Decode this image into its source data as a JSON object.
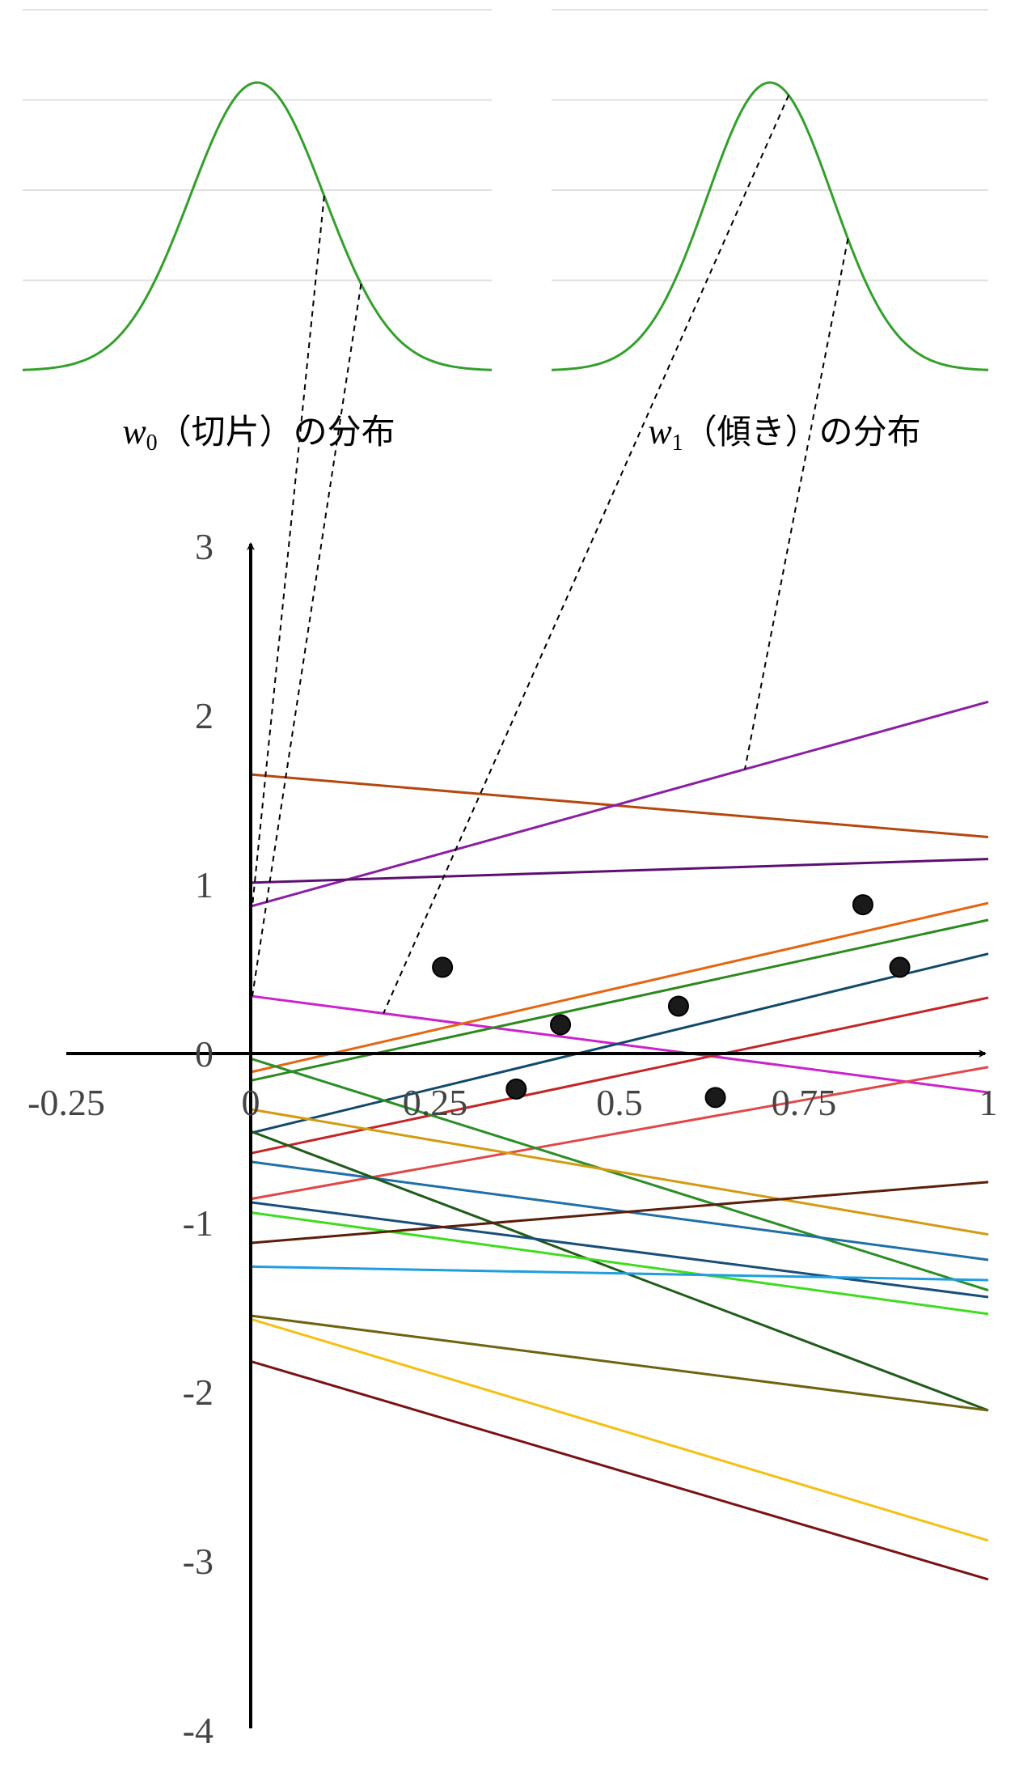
{
  "chart_data": [
    {
      "type": "line",
      "panel": "w0-distribution",
      "title_var": "w",
      "title_sub": "0",
      "title_text": "（切片）の分布",
      "curve": "gaussian",
      "mean": 0,
      "sd": 1,
      "x_range": [
        -3.5,
        3.5
      ],
      "y_range": [
        0,
        1
      ],
      "gridlines": [
        0,
        0.25,
        0.5,
        0.75,
        1.0
      ],
      "grid": true,
      "colors": {
        "curve": "#33a02c",
        "grid": "#e0e0e0"
      }
    },
    {
      "type": "line",
      "panel": "w1-distribution",
      "title_var": "w",
      "title_sub": "1",
      "title_text": "（傾き）の分布",
      "curve": "gaussian",
      "mean": 0,
      "sd": 1,
      "x_range": [
        -3.5,
        3.5
      ],
      "y_range": [
        0,
        1
      ],
      "gridlines": [
        0,
        0.25,
        0.5,
        0.75,
        1.0
      ],
      "grid": true,
      "colors": {
        "curve": "#33a02c",
        "grid": "#e0e0e0"
      }
    },
    {
      "type": "line",
      "panel": "sampled-lines",
      "xlim": [
        -0.25,
        1
      ],
      "ylim": [
        -4,
        3
      ],
      "x_ticks": [
        {
          "value": -0.25,
          "label": "-0.25"
        },
        {
          "value": 0,
          "label": "0"
        },
        {
          "value": 0.25,
          "label": "0.25"
        },
        {
          "value": 0.5,
          "label": "0.5"
        },
        {
          "value": 0.75,
          "label": "0.75"
        },
        {
          "value": 1,
          "label": "1"
        }
      ],
      "y_ticks": [
        {
          "value": 3,
          "label": "3"
        },
        {
          "value": 2,
          "label": "2"
        },
        {
          "value": 1,
          "label": "1"
        },
        {
          "value": 0,
          "label": "0"
        },
        {
          "value": -1,
          "label": "-1"
        },
        {
          "value": -2,
          "label": "-2"
        },
        {
          "value": -3,
          "label": "-3"
        },
        {
          "value": -4,
          "label": "-4"
        }
      ],
      "series": [
        {
          "y0": 1.65,
          "y1": 1.28,
          "color": "#b5470f"
        },
        {
          "y0": 0.87,
          "y1": 2.08,
          "color": "#8a1fa3"
        },
        {
          "y0": 1.01,
          "y1": 1.15,
          "color": "#5c1070"
        },
        {
          "y0": 0.34,
          "y1": -0.23,
          "color": "#cc22cc"
        },
        {
          "y0": -0.11,
          "y1": 0.89,
          "color": "#e6650f"
        },
        {
          "y0": -0.16,
          "y1": 0.79,
          "color": "#2b8a1e"
        },
        {
          "y0": -0.47,
          "y1": 0.59,
          "color": "#11496b"
        },
        {
          "y0": -0.59,
          "y1": 0.33,
          "color": "#c42525"
        },
        {
          "y0": -0.86,
          "y1": -0.08,
          "color": "#e04848"
        },
        {
          "y0": -0.03,
          "y1": -1.4,
          "color": "#2a8f25"
        },
        {
          "y0": -0.33,
          "y1": -1.07,
          "color": "#d49a12"
        },
        {
          "y0": -0.64,
          "y1": -1.22,
          "color": "#1f6fa8"
        },
        {
          "y0": -0.46,
          "y1": -2.11,
          "color": "#1f5c18"
        },
        {
          "y0": -0.88,
          "y1": -1.44,
          "color": "#1a4e7a"
        },
        {
          "y0": -0.94,
          "y1": -1.54,
          "color": "#3fdc1f"
        },
        {
          "y0": -1.12,
          "y1": -0.76,
          "color": "#5a1f0a"
        },
        {
          "y0": -1.26,
          "y1": -1.34,
          "color": "#1f9de0"
        },
        {
          "y0": -1.55,
          "y1": -2.11,
          "color": "#6e6410"
        },
        {
          "y0": -1.57,
          "y1": -2.88,
          "color": "#f5c013"
        },
        {
          "y0": -1.82,
          "y1": -3.11,
          "color": "#7a1214"
        }
      ],
      "points": [
        {
          "x": 0.26,
          "y": 0.51
        },
        {
          "x": 0.36,
          "y": -0.21
        },
        {
          "x": 0.42,
          "y": 0.17
        },
        {
          "x": 0.58,
          "y": 0.28
        },
        {
          "x": 0.63,
          "y": -0.26
        },
        {
          "x": 0.83,
          "y": 0.88
        },
        {
          "x": 0.88,
          "y": 0.51
        }
      ],
      "colors": {
        "axis": "#000000",
        "tick_label": "#444444",
        "point": "#1a1a1a",
        "connector": "#000000"
      }
    }
  ]
}
